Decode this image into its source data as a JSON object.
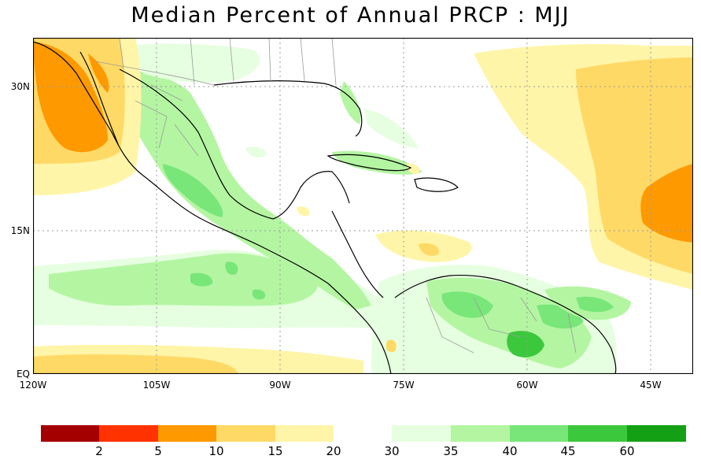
{
  "title": "Median Percent of Annual PRCP  :  MJJ",
  "map": {
    "lat_labels": [
      "30N",
      "15N",
      "EQ"
    ],
    "lon_labels": [
      "120W",
      "105W",
      "90W",
      "75W",
      "60W",
      "45W"
    ]
  },
  "legend": {
    "colors": [
      "#a50000",
      "#ff3200",
      "#ff9900",
      "#ffd966",
      "#fff5a8",
      "#e6ffe0",
      "#b4f5a2",
      "#78e678",
      "#3cc83c",
      "#14a014"
    ],
    "ticks": [
      "2",
      "5",
      "10",
      "15",
      "20",
      "30",
      "35",
      "40",
      "45",
      "60"
    ]
  },
  "palette": {
    "orange": "#ff9900",
    "yellow": "#ffd966",
    "light_yellow": "#fff5a8",
    "pale_green": "#e6ffe0",
    "light_green": "#b4f5a2",
    "green": "#78e678",
    "dark_green": "#3cc83c"
  }
}
